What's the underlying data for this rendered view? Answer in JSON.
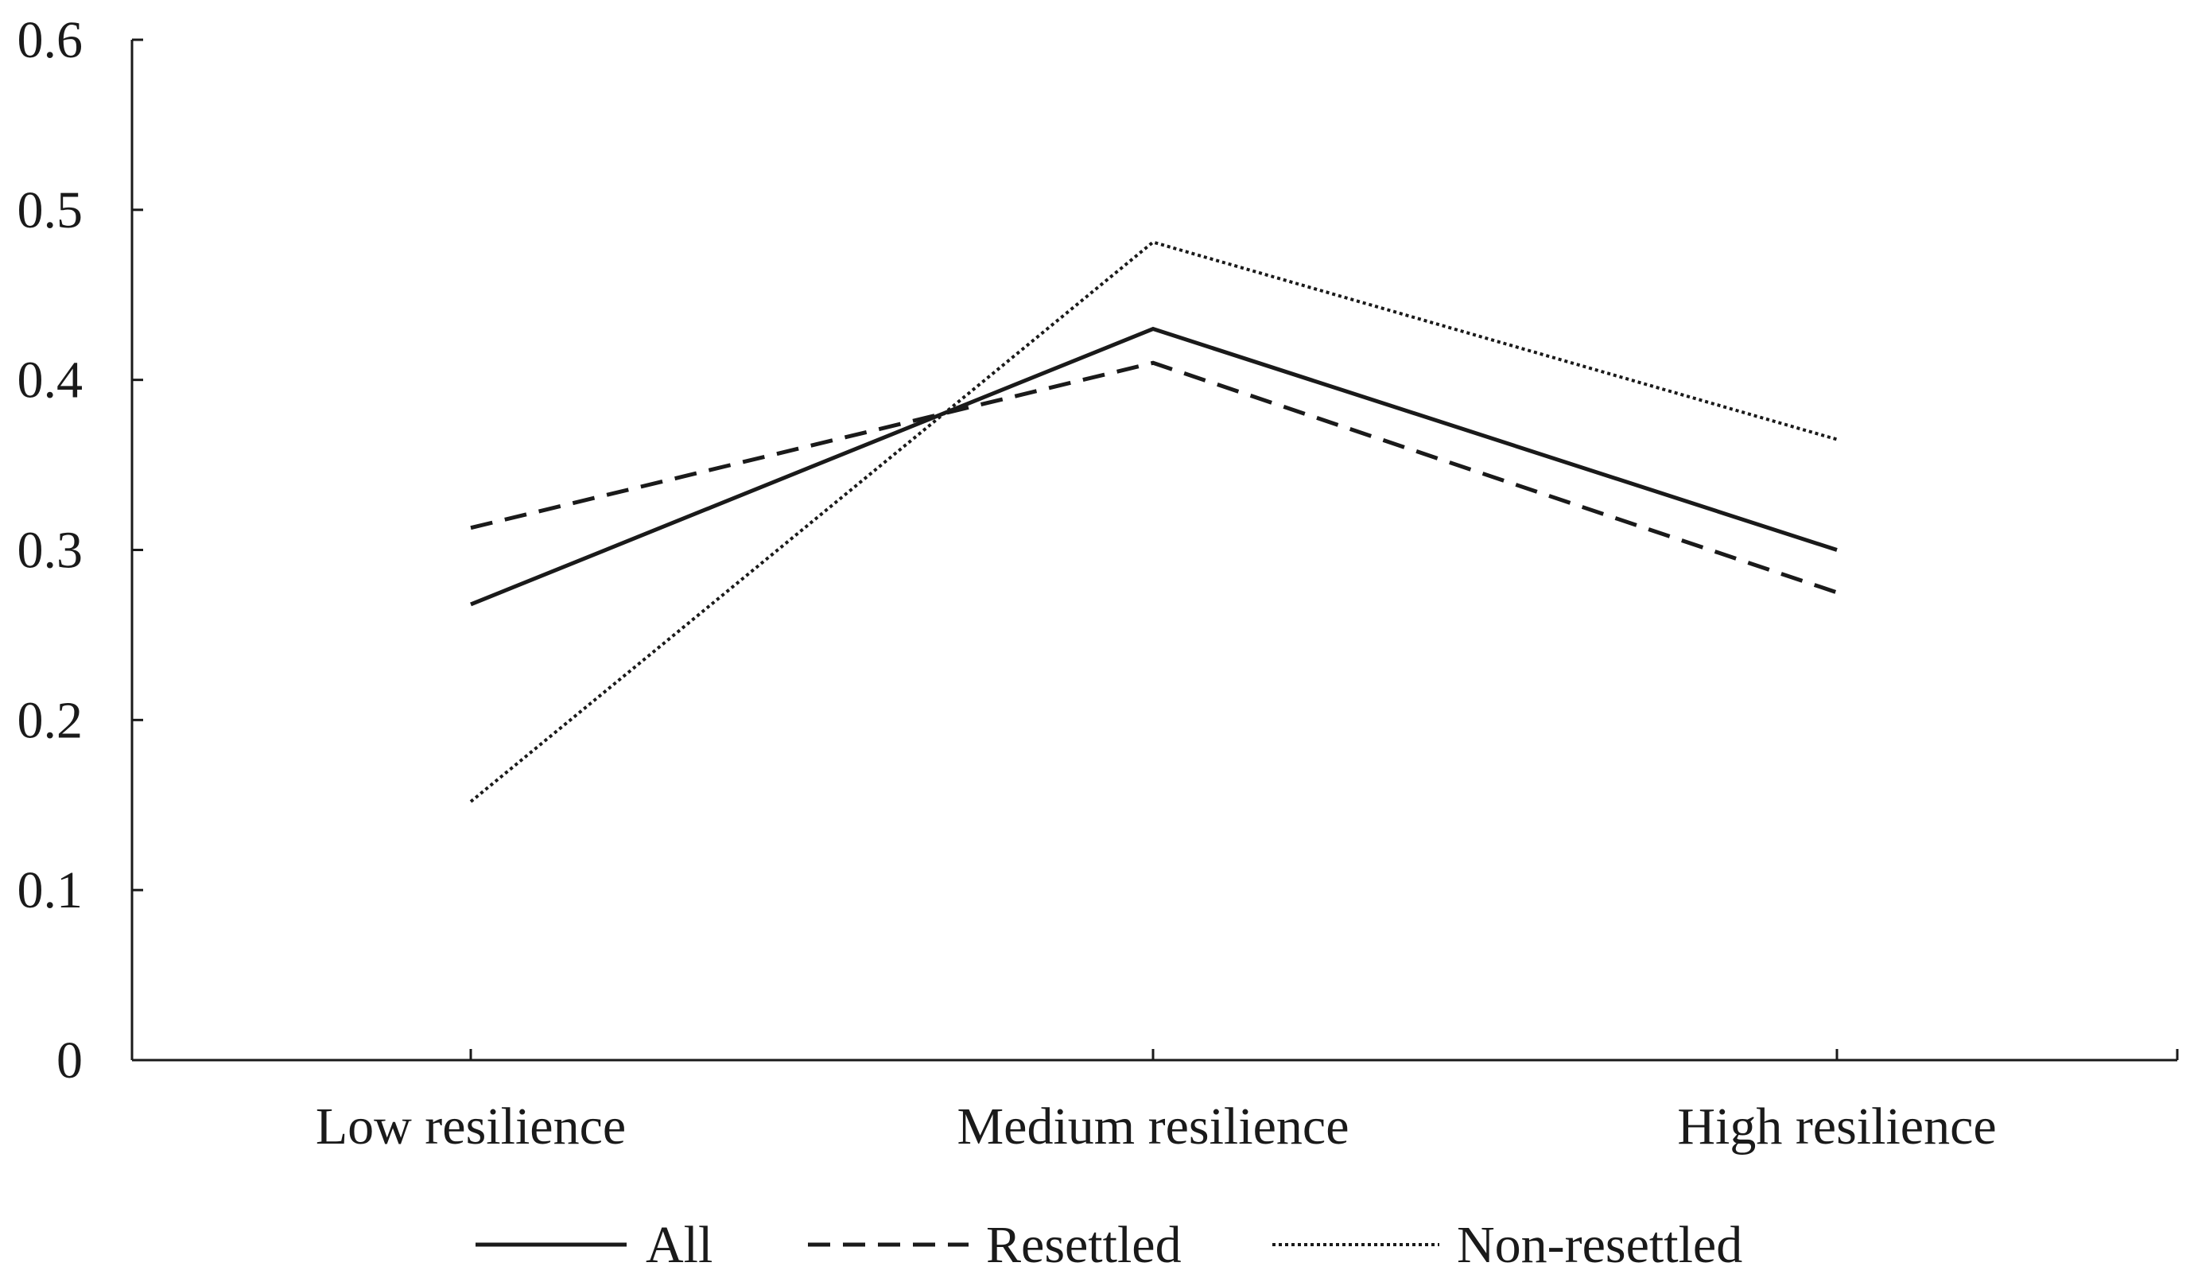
{
  "chart_data": {
    "type": "line",
    "title": "",
    "xlabel": "",
    "ylabel": "",
    "categories": [
      "Low resilience",
      "Medium resilience",
      "High resilience"
    ],
    "ylim": [
      0,
      0.6
    ],
    "yticks": [
      "0",
      "0.1",
      "0.2",
      "0.3",
      "0.4",
      "0.5",
      "0.6"
    ],
    "grid": false,
    "legend_position": "bottom",
    "series": [
      {
        "name": "All",
        "style": "solid",
        "color": "#1a1a1a",
        "values": [
          0.268,
          0.43,
          0.3
        ]
      },
      {
        "name": "Resettled",
        "style": "dashed",
        "color": "#1a1a1a",
        "values": [
          0.313,
          0.41,
          0.275
        ]
      },
      {
        "name": "Non-resettled",
        "style": "dotted",
        "color": "#1a1a1a",
        "values": [
          0.152,
          0.481,
          0.365
        ]
      }
    ]
  }
}
